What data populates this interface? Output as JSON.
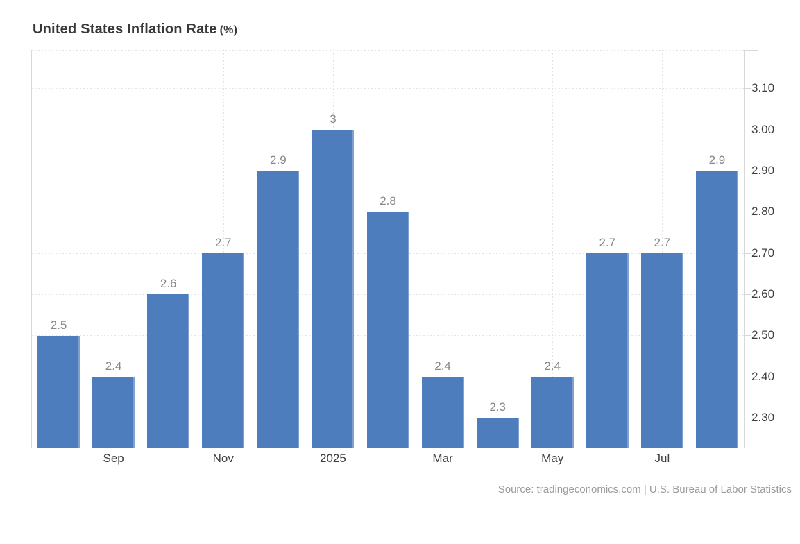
{
  "title": {
    "text": "United States Inflation Rate",
    "unit": "(%)"
  },
  "source_note": "Source: tradingeconomics.com | U.S. Bureau of Labor Statistics",
  "colors": {
    "bar": "#4e7dbd",
    "grid": "#e3e3e3",
    "axis": "#d8d8d8",
    "baseline": "#c9c9c9",
    "value_label": "#878787",
    "axis_label": "#3e3e3e",
    "title": "#383838",
    "source": "#9b9b9b"
  },
  "chart_data": {
    "type": "bar",
    "title": "United States Inflation Rate (%)",
    "values": [
      2.5,
      2.4,
      2.6,
      2.7,
      2.9,
      3.0,
      2.8,
      2.4,
      2.3,
      2.4,
      2.7,
      2.7,
      2.9
    ],
    "value_labels": [
      "2.5",
      "2.4",
      "2.6",
      "2.7",
      "2.9",
      "3",
      "2.8",
      "2.4",
      "2.3",
      "2.4",
      "2.7",
      "2.7",
      "2.9"
    ],
    "x_ticks": [
      {
        "label": "Sep",
        "bar_index": 1
      },
      {
        "label": "Nov",
        "bar_index": 3
      },
      {
        "label": "2025",
        "bar_index": 5
      },
      {
        "label": "Mar",
        "bar_index": 7
      },
      {
        "label": "May",
        "bar_index": 9
      },
      {
        "label": "Jul",
        "bar_index": 11
      }
    ],
    "y_ticks": [
      2.3,
      2.4,
      2.5,
      2.6,
      2.7,
      2.8,
      2.9,
      3.0,
      3.1
    ],
    "y_tick_labels": [
      "2.30",
      "2.40",
      "2.50",
      "2.60",
      "2.70",
      "2.80",
      "2.90",
      "3.00",
      "3.10"
    ],
    "ylim": [
      2.228,
      3.193
    ],
    "y_axis_side": "right",
    "grid": "dotted",
    "legend": "none"
  }
}
